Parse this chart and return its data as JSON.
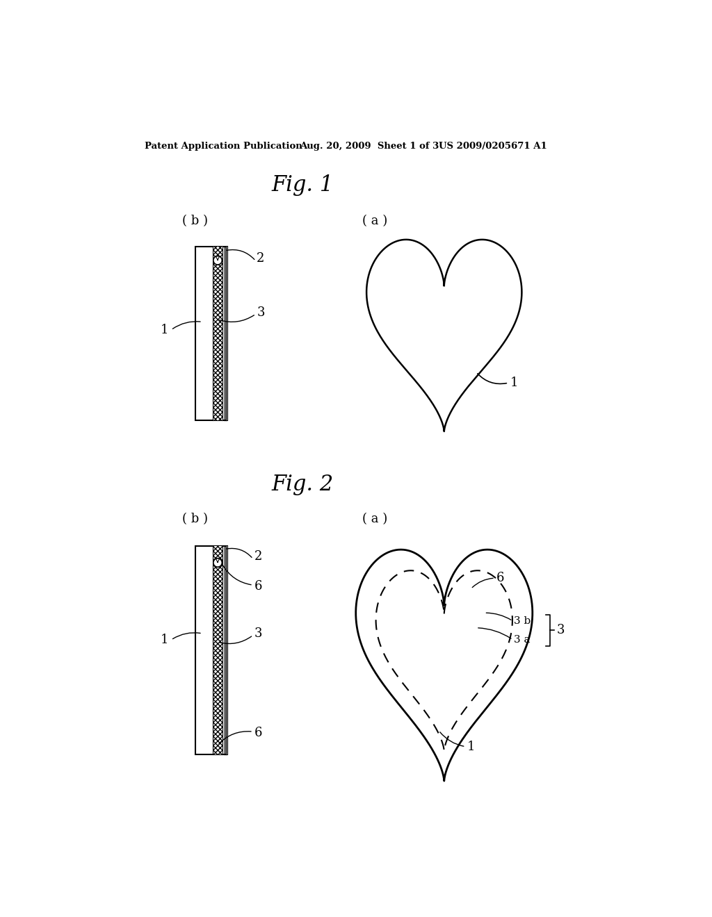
{
  "bg_color": "#ffffff",
  "header_left": "Patent Application Publication",
  "header_mid": "Aug. 20, 2009  Sheet 1 of 3",
  "header_right": "US 2009/0205671 A1",
  "fig1_title": "Fig. 1",
  "fig2_title": "Fig. 2",
  "label_b": "( b )",
  "label_a": "( a )",
  "line_color": "#000000"
}
